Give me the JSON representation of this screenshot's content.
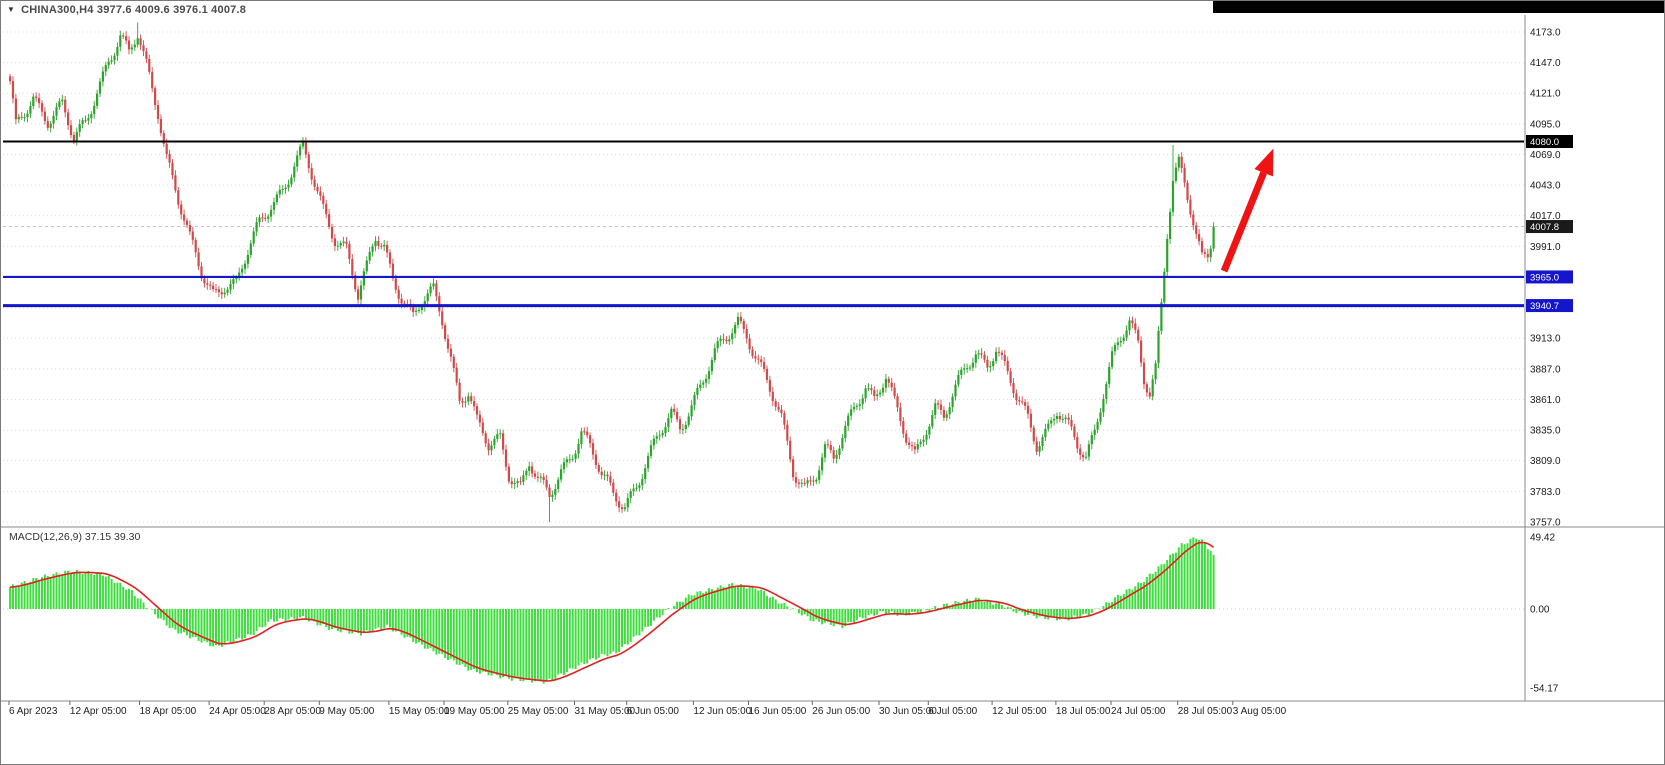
{
  "icons": {
    "symbol_dropdown": "▼"
  },
  "header": {
    "symbol_ohlc": "CHINA300,H4 3977.6 4009.6 3976.1 4007.8"
  },
  "chart_data": {
    "type": "candlestick",
    "symbol": "CHINA300",
    "timeframe": "H4",
    "title": "CHINA300,H4",
    "ohlc_readout": {
      "open": 3977.6,
      "high": 4009.6,
      "low": 3976.1,
      "close": 4007.8
    },
    "ylim": [
      3754.4,
      4184.0
    ],
    "grid": true,
    "y_axis": {
      "ticks": [
        4173.0,
        4147.0,
        4121.0,
        4095.0,
        4069.0,
        4043.0,
        4017.0,
        3991.0,
        3965.0,
        3939.0,
        3913.0,
        3887.0,
        3861.0,
        3835.0,
        3809.0,
        3783.0,
        3757.0
      ]
    },
    "x_axis": {
      "labels": [
        {
          "t": "6 Apr 2023",
          "b": 0
        },
        {
          "t": "12 Apr 05:00",
          "b": 21
        },
        {
          "t": "18 Apr 05:00",
          "b": 45
        },
        {
          "t": "24 Apr 05:00",
          "b": 69
        },
        {
          "t": "28 Apr 05:00",
          "b": 88
        },
        {
          "t": "9 May 05:00",
          "b": 107
        },
        {
          "t": "15 May 05:00",
          "b": 131
        },
        {
          "t": "19 May 05:00",
          "b": 150
        },
        {
          "t": "25 May 05:00",
          "b": 172
        },
        {
          "t": "31 May 05:00",
          "b": 195
        },
        {
          "t": "6 Jun 05:00",
          "b": 213
        },
        {
          "t": "12 Jun 05:00",
          "b": 236
        },
        {
          "t": "16 Jun 05:00",
          "b": 255
        },
        {
          "t": "26 Jun 05:00",
          "b": 277
        },
        {
          "t": "30 Jun 05:00",
          "b": 300
        },
        {
          "t": "6 Jul 05:00",
          "b": 317
        },
        {
          "t": "12 Jul 05:00",
          "b": 339
        },
        {
          "t": "18 Jul 05:00",
          "b": 361
        },
        {
          "t": "24 Jul 05:00",
          "b": 380
        },
        {
          "t": "28 Jul 05:00",
          "b": 403
        },
        {
          "t": "3 Aug 05:00",
          "b": 422
        }
      ]
    },
    "levels": [
      {
        "price": 4080.0,
        "label": "4080.0",
        "color": "#000000",
        "width": 2
      },
      {
        "price": 3965.0,
        "label": "3965.0",
        "color": "#1515cc",
        "width": 2.2
      },
      {
        "price": 3940.7,
        "label": "3940.7",
        "color": "#1515cc",
        "width": 3
      }
    ],
    "bid": {
      "price": 4007.8,
      "label": "4007.8",
      "tag_color": "#1a1a1a"
    },
    "colors": {
      "up": "#2ca32c",
      "down": "#cf4a4a",
      "grid": "#dcdcdc",
      "axis_text": "#1a1a1a"
    },
    "bars_total": 415,
    "price_path": [
      [
        0,
        4128
      ],
      [
        2,
        4090
      ],
      [
        8,
        4118
      ],
      [
        13,
        4100
      ],
      [
        18,
        4110
      ],
      [
        22,
        4080
      ],
      [
        26,
        4095
      ],
      [
        30,
        4125
      ],
      [
        34,
        4150
      ],
      [
        38,
        4168
      ],
      [
        41,
        4152
      ],
      [
        44,
        4170
      ],
      [
        47,
        4145
      ],
      [
        51,
        4108
      ],
      [
        54,
        4068
      ],
      [
        58,
        4030
      ],
      [
        62,
        3995
      ],
      [
        66,
        3968
      ],
      [
        70,
        3952
      ],
      [
        74,
        3960
      ],
      [
        78,
        3958
      ],
      [
        82,
        3985
      ],
      [
        86,
        4010
      ],
      [
        90,
        4028
      ],
      [
        94,
        4040
      ],
      [
        98,
        4060
      ],
      [
        101,
        4072
      ],
      [
        104,
        4050
      ],
      [
        108,
        4022
      ],
      [
        112,
        4000
      ],
      [
        116,
        3990
      ],
      [
        120,
        3948
      ],
      [
        123,
        3970
      ],
      [
        126,
        3998
      ],
      [
        129,
        3992
      ],
      [
        132,
        3965
      ],
      [
        136,
        3945
      ],
      [
        139,
        3930
      ],
      [
        142,
        3942
      ],
      [
        146,
        3952
      ],
      [
        149,
        3930
      ],
      [
        152,
        3898
      ],
      [
        155,
        3862
      ],
      [
        158,
        3868
      ],
      [
        161,
        3840
      ],
      [
        165,
        3820
      ],
      [
        169,
        3828
      ],
      [
        172,
        3800
      ],
      [
        176,
        3788
      ],
      [
        179,
        3808
      ],
      [
        182,
        3790
      ],
      [
        186,
        3778
      ],
      [
        190,
        3800
      ],
      [
        194,
        3818
      ],
      [
        197,
        3835
      ],
      [
        200,
        3820
      ],
      [
        204,
        3795
      ],
      [
        208,
        3780
      ],
      [
        212,
        3772
      ],
      [
        216,
        3790
      ],
      [
        220,
        3810
      ],
      [
        224,
        3830
      ],
      [
        228,
        3848
      ],
      [
        231,
        3838
      ],
      [
        235,
        3858
      ],
      [
        239,
        3878
      ],
      [
        243,
        3898
      ],
      [
        247,
        3912
      ],
      [
        251,
        3928
      ],
      [
        254,
        3918
      ],
      [
        257,
        3900
      ],
      [
        260,
        3882
      ],
      [
        263,
        3862
      ],
      [
        266,
        3842
      ],
      [
        270,
        3800
      ],
      [
        274,
        3788
      ],
      [
        278,
        3800
      ],
      [
        281,
        3818
      ],
      [
        284,
        3808
      ],
      [
        288,
        3835
      ],
      [
        292,
        3860
      ],
      [
        295,
        3875
      ],
      [
        298,
        3862
      ],
      [
        302,
        3880
      ],
      [
        305,
        3855
      ],
      [
        309,
        3828
      ],
      [
        312,
        3815
      ],
      [
        316,
        3840
      ],
      [
        319,
        3855
      ],
      [
        322,
        3845
      ],
      [
        326,
        3868
      ],
      [
        330,
        3890
      ],
      [
        333,
        3902
      ],
      [
        337,
        3892
      ],
      [
        340,
        3905
      ],
      [
        344,
        3880
      ],
      [
        347,
        3862
      ],
      [
        351,
        3845
      ],
      [
        354,
        3825
      ],
      [
        358,
        3838
      ],
      [
        361,
        3852
      ],
      [
        364,
        3840
      ],
      [
        368,
        3820
      ],
      [
        371,
        3812
      ],
      [
        374,
        3835
      ],
      [
        377,
        3870
      ],
      [
        380,
        3898
      ],
      [
        383,
        3912
      ],
      [
        386,
        3925
      ],
      [
        389,
        3905
      ],
      [
        391,
        3878
      ],
      [
        393,
        3868
      ],
      [
        395,
        3890
      ],
      [
        397,
        3945
      ],
      [
        399,
        4005
      ],
      [
        401,
        4048
      ],
      [
        403,
        4060
      ],
      [
        405,
        4042
      ],
      [
        407,
        4020
      ],
      [
        409,
        3998
      ],
      [
        411,
        3980
      ],
      [
        413,
        3985
      ],
      [
        415,
        4008
      ]
    ],
    "wick_spikes": [
      {
        "bar": 44,
        "high": 4181
      },
      {
        "bar": 186,
        "low": 3757
      },
      {
        "bar": 401,
        "high": 4077
      }
    ]
  },
  "macd": {
    "label": "MACD(12,26,9) 37.15 39.30",
    "params": "12,26,9",
    "macd_value": 37.15,
    "signal_value": 39.3,
    "axis_ticks": [
      49.42,
      0.0,
      -54.17
    ],
    "ylim": [
      -59.7,
      54.9
    ],
    "colors": {
      "histogram": "#3fdd3f",
      "signal": "#e02020"
    },
    "histogram_path": [
      [
        0,
        15
      ],
      [
        11,
        22
      ],
      [
        21,
        26
      ],
      [
        32,
        24
      ],
      [
        42,
        12
      ],
      [
        48,
        0
      ],
      [
        56,
        -14
      ],
      [
        71,
        -26
      ],
      [
        83,
        -18
      ],
      [
        90,
        -8
      ],
      [
        101,
        -6
      ],
      [
        111,
        -14
      ],
      [
        121,
        -17
      ],
      [
        130,
        -12
      ],
      [
        142,
        -25
      ],
      [
        159,
        -42
      ],
      [
        173,
        -48
      ],
      [
        185,
        -50
      ],
      [
        197,
        -38
      ],
      [
        204,
        -32
      ],
      [
        209,
        -30
      ],
      [
        220,
        -12
      ],
      [
        227,
        0
      ],
      [
        235,
        10
      ],
      [
        249,
        17
      ],
      [
        258,
        14
      ],
      [
        264,
        6
      ],
      [
        270,
        0
      ],
      [
        277,
        -8
      ],
      [
        287,
        -12
      ],
      [
        294,
        -6
      ],
      [
        301,
        -2
      ],
      [
        308,
        -4
      ],
      [
        314,
        -2
      ],
      [
        323,
        3
      ],
      [
        333,
        7
      ],
      [
        342,
        3
      ],
      [
        347,
        -2
      ],
      [
        356,
        -6
      ],
      [
        364,
        -7
      ],
      [
        371,
        -4
      ],
      [
        377,
        2
      ],
      [
        383,
        10
      ],
      [
        390,
        18
      ],
      [
        397,
        30
      ],
      [
        404,
        44
      ],
      [
        409,
        49.4
      ],
      [
        412,
        45
      ],
      [
        415,
        37.15
      ]
    ]
  },
  "arrow": {
    "type": "trend-arrow-up",
    "color": "#ee1414",
    "from": [
      419,
      3970
    ],
    "to": [
      436,
      4074
    ],
    "shaft_width": 7,
    "head_len": 26,
    "head_halfwidth": 10
  }
}
